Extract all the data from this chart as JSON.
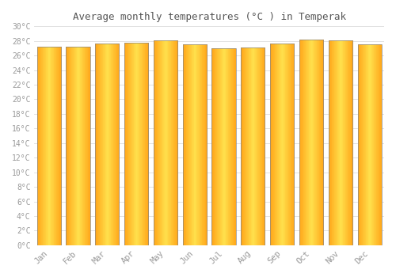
{
  "title": "Average monthly temperatures (°C ) in Temperak",
  "months": [
    "Jan",
    "Feb",
    "Mar",
    "Apr",
    "May",
    "Jun",
    "Jul",
    "Aug",
    "Sep",
    "Oct",
    "Nov",
    "Dec"
  ],
  "temperatures": [
    27.2,
    27.2,
    27.6,
    27.8,
    28.1,
    27.5,
    27.0,
    27.1,
    27.6,
    28.2,
    28.1,
    27.5
  ],
  "bar_color_center": "#FFD54F",
  "bar_color_edge": "#FFA726",
  "bar_border_color": "#888888",
  "background_color": "#FFFFFF",
  "plot_bg_color": "#FFFFFF",
  "grid_color": "#DDDDDD",
  "ylim": [
    0,
    30
  ],
  "yticks": [
    0,
    2,
    4,
    6,
    8,
    10,
    12,
    14,
    16,
    18,
    20,
    22,
    24,
    26,
    28,
    30
  ],
  "tick_label_color": "#999999",
  "title_color": "#555555",
  "font_family": "monospace",
  "bar_width": 0.82
}
